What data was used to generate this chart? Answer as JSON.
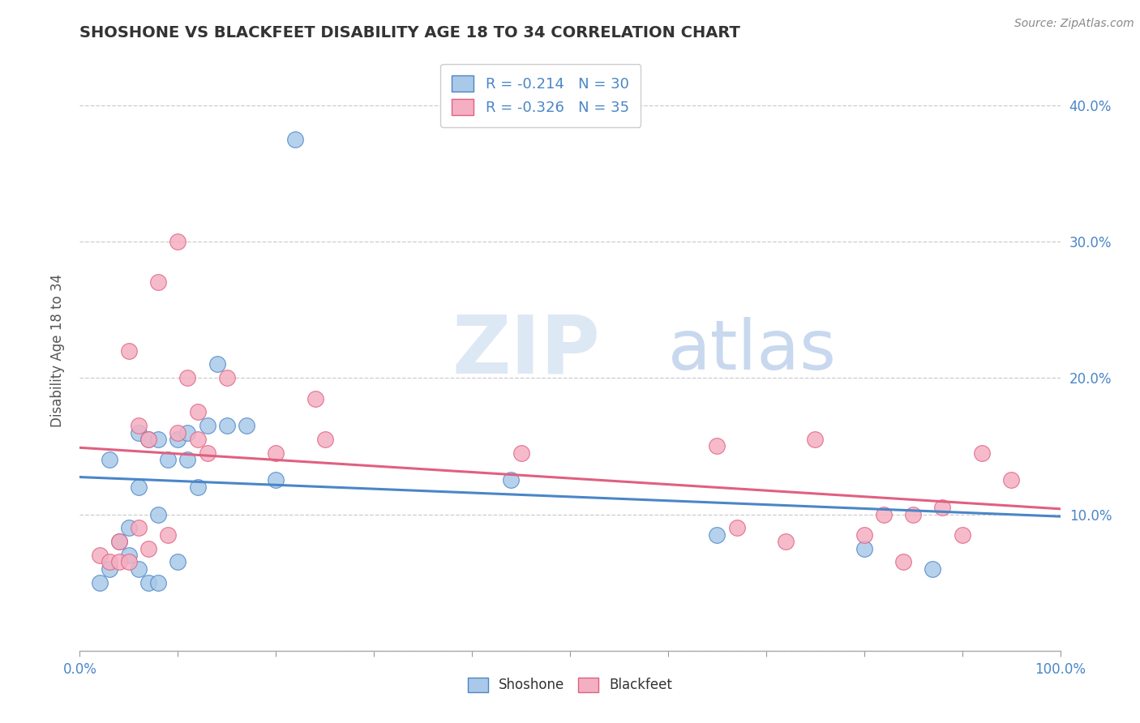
{
  "title": "SHOSHONE VS BLACKFEET DISABILITY AGE 18 TO 34 CORRELATION CHART",
  "source": "Source: ZipAtlas.com",
  "ylabel": "Disability Age 18 to 34",
  "xlim": [
    0.0,
    1.0
  ],
  "ylim": [
    0.0,
    0.44
  ],
  "yticks": [
    0.0,
    0.1,
    0.2,
    0.3,
    0.4
  ],
  "xticks": [
    0.0,
    0.1,
    0.2,
    0.3,
    0.4,
    0.5,
    0.6,
    0.7,
    0.8,
    0.9,
    1.0
  ],
  "shoshone_color": "#aac9e8",
  "blackfeet_color": "#f4afc2",
  "shoshone_line_color": "#4a86c8",
  "blackfeet_line_color": "#e06080",
  "legend_text_color": "#4a86c8",
  "tick_color": "#4a86c8",
  "R_shoshone": -0.214,
  "N_shoshone": 30,
  "R_blackfeet": -0.326,
  "N_blackfeet": 35,
  "shoshone_x": [
    0.02,
    0.03,
    0.03,
    0.04,
    0.05,
    0.05,
    0.06,
    0.06,
    0.06,
    0.07,
    0.07,
    0.08,
    0.08,
    0.08,
    0.09,
    0.1,
    0.1,
    0.11,
    0.11,
    0.12,
    0.13,
    0.14,
    0.15,
    0.17,
    0.2,
    0.22,
    0.44,
    0.65,
    0.8,
    0.87
  ],
  "shoshone_y": [
    0.05,
    0.06,
    0.14,
    0.08,
    0.07,
    0.09,
    0.06,
    0.12,
    0.16,
    0.05,
    0.155,
    0.05,
    0.1,
    0.155,
    0.14,
    0.065,
    0.155,
    0.14,
    0.16,
    0.12,
    0.165,
    0.21,
    0.165,
    0.165,
    0.125,
    0.375,
    0.125,
    0.085,
    0.075,
    0.06
  ],
  "blackfeet_x": [
    0.02,
    0.03,
    0.04,
    0.04,
    0.05,
    0.05,
    0.06,
    0.06,
    0.07,
    0.07,
    0.08,
    0.09,
    0.1,
    0.1,
    0.11,
    0.12,
    0.12,
    0.13,
    0.15,
    0.2,
    0.24,
    0.25,
    0.45,
    0.65,
    0.67,
    0.72,
    0.75,
    0.8,
    0.82,
    0.84,
    0.85,
    0.88,
    0.9,
    0.92,
    0.95
  ],
  "blackfeet_y": [
    0.07,
    0.065,
    0.065,
    0.08,
    0.065,
    0.22,
    0.09,
    0.165,
    0.075,
    0.155,
    0.27,
    0.085,
    0.16,
    0.3,
    0.2,
    0.155,
    0.175,
    0.145,
    0.2,
    0.145,
    0.185,
    0.155,
    0.145,
    0.15,
    0.09,
    0.08,
    0.155,
    0.085,
    0.1,
    0.065,
    0.1,
    0.105,
    0.085,
    0.145,
    0.125
  ],
  "background_color": "#ffffff",
  "grid_color": "#cccccc",
  "watermark_zip_color": "#dde8f5",
  "watermark_atlas_color": "#c8d8ee"
}
